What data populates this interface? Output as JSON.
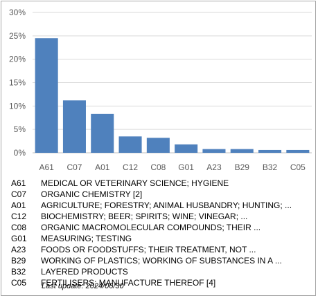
{
  "chart_data": {
    "type": "bar",
    "categories": [
      "A61",
      "C07",
      "A01",
      "C12",
      "C08",
      "G01",
      "A23",
      "B29",
      "B32",
      "C05"
    ],
    "values": [
      24.5,
      11.2,
      8.3,
      3.5,
      3.2,
      1.8,
      0.8,
      0.8,
      0.6,
      0.6
    ],
    "title": "",
    "xlabel": "",
    "ylabel": "",
    "ylim": [
      0,
      30
    ],
    "yticks": [
      "0%",
      "5%",
      "10%",
      "15%",
      "20%",
      "25%",
      "30%"
    ],
    "grid": true,
    "bar_color": "#4f81bd",
    "grid_color": "#d9d9d9"
  },
  "legend": [
    {
      "code": "A61",
      "desc": "MEDICAL OR VETERINARY SCIENCE; HYGIENE"
    },
    {
      "code": "C07",
      "desc": "ORGANIC CHEMISTRY [2]"
    },
    {
      "code": "A01",
      "desc": "AGRICULTURE; FORESTRY; ANIMAL HUSBANDRY; HUNTING; ..."
    },
    {
      "code": "C12",
      "desc": "BIOCHEMISTRY; BEER; SPIRITS; WINE; VINEGAR; ..."
    },
    {
      "code": "C08",
      "desc": "ORGANIC MACROMOLECULAR COMPOUNDS; THEIR ..."
    },
    {
      "code": "G01",
      "desc": "MEASURING; TESTING"
    },
    {
      "code": "A23",
      "desc": "FOODS OR FOODSTUFFS; THEIR TREATMENT, NOT ..."
    },
    {
      "code": "B29",
      "desc": "WORKING OF PLASTICS; WORKING OF SUBSTANCES IN A ..."
    },
    {
      "code": "B32",
      "desc": "LAYERED PRODUCTS"
    },
    {
      "code": "C05",
      "desc": "FERTILISERS; MANUFACTURE THEREOF [4]"
    }
  ],
  "footer": {
    "last_update": "Last update:  2024/06/30"
  }
}
